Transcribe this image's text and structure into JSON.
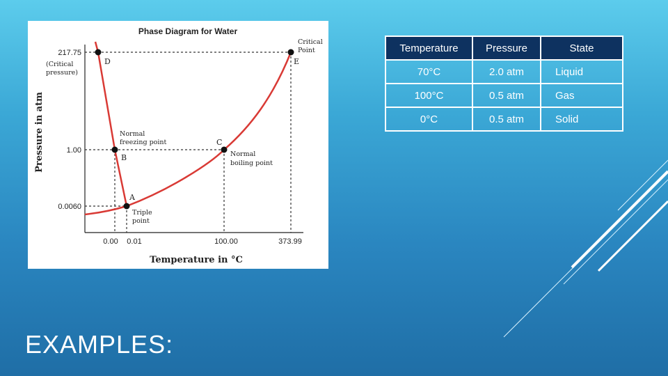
{
  "slide": {
    "title": "EXAMPLES:"
  },
  "diagram": {
    "title": "Phase Diagram for Water",
    "xlabel": "Temperature in °C",
    "ylabel": "Pressure in atm",
    "y_ticks": [
      "217.75",
      "1.00",
      "0.0060"
    ],
    "y_critical_note": [
      "(Critical",
      "pressure)"
    ],
    "x_ticks": [
      "0.00",
      "0.01",
      "100.00",
      "373.99"
    ],
    "points": {
      "D": "D",
      "E": "E",
      "C": "C",
      "B": "B",
      "A": "A"
    },
    "labels": {
      "critical_point": [
        "Critical",
        "Point"
      ],
      "normal_freezing": [
        "Normal",
        "freezing point"
      ],
      "normal_boiling": [
        "Normal",
        "boiling point"
      ],
      "triple_point": [
        "Triple",
        "point"
      ]
    },
    "colors": {
      "curve": "#d93a35",
      "dots": "#111111",
      "dashed": "#333333"
    }
  },
  "table": {
    "headers": [
      "Temperature",
      "Pressure",
      "State"
    ],
    "rows": [
      {
        "temperature": "70°C",
        "pressure": "2.0 atm",
        "state": "Liquid"
      },
      {
        "temperature": "100°C",
        "pressure": "0.5 atm",
        "state": "Gas"
      },
      {
        "temperature": "0°C",
        "pressure": "0.5 atm",
        "state": "Solid"
      }
    ],
    "colors": {
      "header_bg": "#0e3260",
      "border": "#ffffff"
    }
  }
}
